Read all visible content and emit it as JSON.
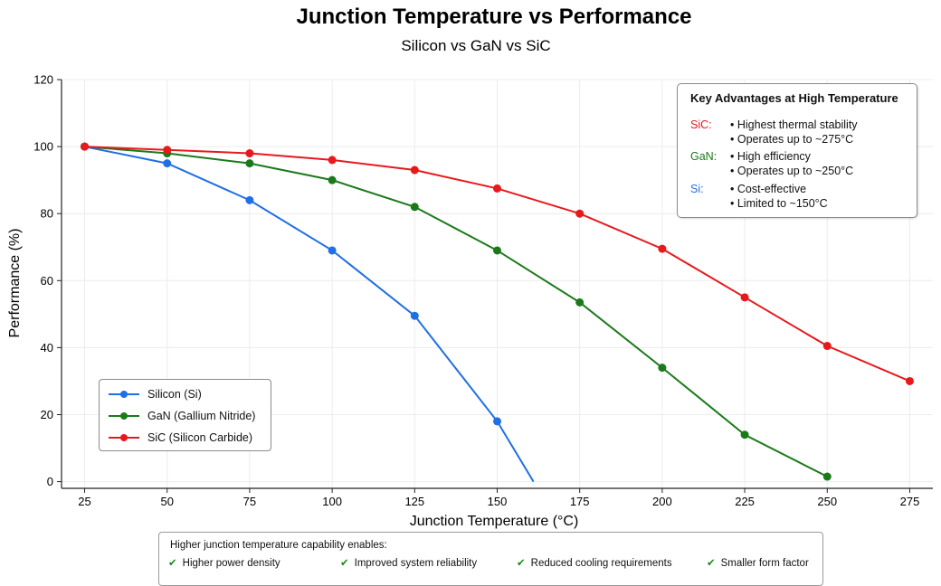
{
  "chart_data": {
    "type": "line",
    "title": "Junction Temperature vs Performance",
    "subtitle": "Silicon vs GaN vs SiC",
    "xlabel": "Junction Temperature (°C)",
    "ylabel": "Performance (%)",
    "xlim": [
      18,
      282
    ],
    "ylim": [
      -2,
      120
    ],
    "x_ticks": [
      25,
      50,
      75,
      100,
      125,
      150,
      175,
      200,
      225,
      250,
      275
    ],
    "y_ticks": [
      0,
      20,
      40,
      60,
      80,
      100,
      120
    ],
    "grid": true,
    "legend_position": "lower-left",
    "series": [
      {
        "name": "Silicon (Si)",
        "color": "#1f6fe5",
        "x": [
          25,
          50,
          75,
          100,
          125,
          150,
          161
        ],
        "y": [
          100,
          95,
          84,
          69,
          49.5,
          18,
          0
        ]
      },
      {
        "name": "GaN (Gallium Nitride)",
        "color": "#1a7a1a",
        "x": [
          25,
          50,
          75,
          100,
          125,
          150,
          175,
          200,
          225,
          250
        ],
        "y": [
          100,
          98,
          95,
          90,
          82,
          69,
          53.5,
          34,
          14,
          1.5
        ]
      },
      {
        "name": "SiC (Silicon Carbide)",
        "color": "#e8191c",
        "x": [
          25,
          50,
          75,
          100,
          125,
          150,
          175,
          200,
          225,
          250,
          275
        ],
        "y": [
          100,
          99,
          98,
          96,
          93,
          87.5,
          80,
          69.5,
          55,
          40.5,
          30
        ]
      }
    ]
  },
  "advantages": {
    "title": "Key Advantages at High Temperature",
    "items": [
      {
        "label": "SiC:",
        "color": "#e8191c",
        "lines": [
          "• Highest thermal stability",
          "• Operates up to ~275°C"
        ]
      },
      {
        "label": "GaN:",
        "color": "#1a7a1a",
        "lines": [
          "• High efficiency",
          "• Operates up to ~250°C"
        ]
      },
      {
        "label": "Si:",
        "color": "#1f6fe5",
        "lines": [
          "• Cost-effective",
          "• Limited to ~150°C"
        ]
      }
    ]
  },
  "enables": {
    "title": "Higher junction temperature capability enables:",
    "check_icon": "checkmark-icon",
    "items": [
      "Higher power density",
      "Improved system reliability",
      "Reduced cooling requirements",
      "Smaller form factor"
    ]
  }
}
